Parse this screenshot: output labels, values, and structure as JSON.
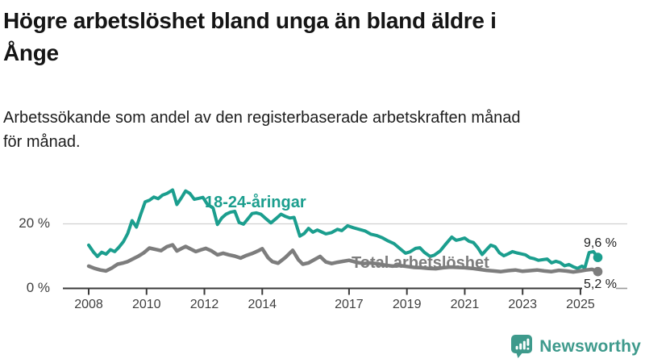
{
  "header": {
    "title_lines": [
      "Högre arbetslöshet bland unga än bland äldre i",
      "Ånge"
    ],
    "subtitle_lines": [
      "Arbetssökande som andel av den registerbaserade arbetskraften månad",
      "för månad."
    ]
  },
  "chart_data": {
    "type": "line",
    "title": "Högre arbetslöshet bland unga än bland äldre i Ånge",
    "subtitle": "Arbetssökande som andel av den registerbaserade arbetskraften månad för månad.",
    "y_unit": "%",
    "x_range": [
      2008,
      2025.75
    ],
    "y_range": [
      0,
      35
    ],
    "grid": "horizontal-only",
    "grid_color": "#d0d0d0",
    "axis_color": "#3a3a3a",
    "y_ticks": [
      {
        "value": 0,
        "label": "0 %"
      },
      {
        "value": 20,
        "label": "20 %"
      }
    ],
    "x_ticks": [
      {
        "year": 2008,
        "label": "2008"
      },
      {
        "year": 2010,
        "label": "2010"
      },
      {
        "year": 2012,
        "label": "2012"
      },
      {
        "year": 2014,
        "label": "2014"
      },
      {
        "year": 2017,
        "label": "2017"
      },
      {
        "year": 2019,
        "label": "2019"
      },
      {
        "year": 2021,
        "label": "2021"
      },
      {
        "year": 2023,
        "label": "2023"
      },
      {
        "year": 2025,
        "label": "2025"
      }
    ],
    "series": [
      {
        "name": "18-24-åringar",
        "color": "#1b9e8e",
        "stroke_width": 4,
        "end_value": 9.6,
        "end_label": "9,6 %",
        "points": [
          [
            2008.0,
            13.4
          ],
          [
            2008.17,
            11.2
          ],
          [
            2008.3,
            9.9
          ],
          [
            2008.45,
            11.2
          ],
          [
            2008.6,
            10.6
          ],
          [
            2008.75,
            12.0
          ],
          [
            2008.9,
            11.4
          ],
          [
            2009.05,
            12.8
          ],
          [
            2009.2,
            14.5
          ],
          [
            2009.35,
            17.0
          ],
          [
            2009.5,
            21.0
          ],
          [
            2009.65,
            19.0
          ],
          [
            2009.8,
            23.0
          ],
          [
            2009.95,
            26.8
          ],
          [
            2010.1,
            27.3
          ],
          [
            2010.25,
            28.3
          ],
          [
            2010.4,
            27.8
          ],
          [
            2010.55,
            28.9
          ],
          [
            2010.7,
            29.4
          ],
          [
            2010.9,
            30.5
          ],
          [
            2011.05,
            26.0
          ],
          [
            2011.2,
            28.0
          ],
          [
            2011.35,
            30.2
          ],
          [
            2011.5,
            29.4
          ],
          [
            2011.65,
            27.6
          ],
          [
            2011.8,
            27.9
          ],
          [
            2011.95,
            28.2
          ],
          [
            2012.1,
            26.1
          ],
          [
            2012.3,
            24.9
          ],
          [
            2012.45,
            19.8
          ],
          [
            2012.6,
            21.8
          ],
          [
            2012.75,
            23.0
          ],
          [
            2012.9,
            23.6
          ],
          [
            2013.05,
            23.9
          ],
          [
            2013.2,
            20.4
          ],
          [
            2013.35,
            19.9
          ],
          [
            2013.5,
            21.5
          ],
          [
            2013.65,
            23.2
          ],
          [
            2013.8,
            23.4
          ],
          [
            2013.95,
            23.0
          ],
          [
            2014.1,
            21.8
          ],
          [
            2014.3,
            20.3
          ],
          [
            2014.5,
            21.8
          ],
          [
            2014.65,
            23.0
          ],
          [
            2014.8,
            22.3
          ],
          [
            2014.95,
            21.8
          ],
          [
            2015.1,
            22.0
          ],
          [
            2015.3,
            16.2
          ],
          [
            2015.45,
            17.0
          ],
          [
            2015.6,
            18.6
          ],
          [
            2015.75,
            17.4
          ],
          [
            2015.9,
            18.1
          ],
          [
            2016.05,
            17.5
          ],
          [
            2016.2,
            16.9
          ],
          [
            2016.4,
            17.3
          ],
          [
            2016.6,
            18.3
          ],
          [
            2016.75,
            17.9
          ],
          [
            2016.95,
            19.4
          ],
          [
            2017.15,
            18.8
          ],
          [
            2017.35,
            18.3
          ],
          [
            2017.55,
            17.8
          ],
          [
            2017.75,
            16.8
          ],
          [
            2017.95,
            16.4
          ],
          [
            2018.15,
            15.7
          ],
          [
            2018.35,
            14.7
          ],
          [
            2018.55,
            13.9
          ],
          [
            2018.75,
            12.4
          ],
          [
            2018.95,
            10.9
          ],
          [
            2019.1,
            11.3
          ],
          [
            2019.3,
            12.4
          ],
          [
            2019.45,
            12.6
          ],
          [
            2019.6,
            11.2
          ],
          [
            2019.8,
            9.9
          ],
          [
            2019.95,
            10.3
          ],
          [
            2020.15,
            11.6
          ],
          [
            2020.35,
            13.8
          ],
          [
            2020.55,
            15.9
          ],
          [
            2020.7,
            14.9
          ],
          [
            2020.85,
            15.2
          ],
          [
            2021.0,
            15.6
          ],
          [
            2021.15,
            14.6
          ],
          [
            2021.3,
            14.2
          ],
          [
            2021.45,
            12.6
          ],
          [
            2021.6,
            10.5
          ],
          [
            2021.75,
            12.0
          ],
          [
            2021.9,
            13.4
          ],
          [
            2022.05,
            12.9
          ],
          [
            2022.2,
            11.0
          ],
          [
            2022.35,
            10.1
          ],
          [
            2022.5,
            10.7
          ],
          [
            2022.65,
            11.4
          ],
          [
            2022.8,
            11.0
          ],
          [
            2022.95,
            10.7
          ],
          [
            2023.1,
            10.4
          ],
          [
            2023.25,
            9.5
          ],
          [
            2023.4,
            9.2
          ],
          [
            2023.55,
            8.7
          ],
          [
            2023.7,
            8.9
          ],
          [
            2023.85,
            9.1
          ],
          [
            2024.0,
            7.9
          ],
          [
            2024.15,
            8.4
          ],
          [
            2024.3,
            8.0
          ],
          [
            2024.45,
            7.0
          ],
          [
            2024.6,
            7.4
          ],
          [
            2024.75,
            6.7
          ],
          [
            2024.9,
            6.2
          ],
          [
            2025.05,
            6.9
          ],
          [
            2025.15,
            6.3
          ],
          [
            2025.3,
            11.1
          ],
          [
            2025.45,
            11.4
          ],
          [
            2025.6,
            9.6
          ]
        ]
      },
      {
        "name": "Total arbetslöshet",
        "color": "#7d7d7d",
        "stroke_width": 4.5,
        "end_value": 5.2,
        "end_label": "5,2 %",
        "points": [
          [
            2008.0,
            6.9
          ],
          [
            2008.2,
            6.2
          ],
          [
            2008.4,
            5.7
          ],
          [
            2008.6,
            5.4
          ],
          [
            2008.8,
            6.3
          ],
          [
            2009.0,
            7.5
          ],
          [
            2009.2,
            7.9
          ],
          [
            2009.35,
            8.3
          ],
          [
            2009.5,
            9.0
          ],
          [
            2009.7,
            9.9
          ],
          [
            2009.9,
            11.0
          ],
          [
            2010.1,
            12.5
          ],
          [
            2010.3,
            12.1
          ],
          [
            2010.5,
            11.7
          ],
          [
            2010.7,
            12.9
          ],
          [
            2010.9,
            13.5
          ],
          [
            2011.05,
            11.6
          ],
          [
            2011.2,
            12.3
          ],
          [
            2011.35,
            13.0
          ],
          [
            2011.5,
            12.3
          ],
          [
            2011.7,
            11.4
          ],
          [
            2011.9,
            12.0
          ],
          [
            2012.05,
            12.4
          ],
          [
            2012.25,
            11.6
          ],
          [
            2012.45,
            10.4
          ],
          [
            2012.65,
            10.9
          ],
          [
            2012.85,
            10.4
          ],
          [
            2013.05,
            10.0
          ],
          [
            2013.25,
            9.4
          ],
          [
            2013.45,
            10.2
          ],
          [
            2013.65,
            10.8
          ],
          [
            2013.85,
            11.6
          ],
          [
            2014.0,
            12.3
          ],
          [
            2014.2,
            9.5
          ],
          [
            2014.35,
            8.3
          ],
          [
            2014.55,
            7.8
          ],
          [
            2014.8,
            9.6
          ],
          [
            2015.05,
            11.8
          ],
          [
            2015.25,
            8.9
          ],
          [
            2015.4,
            7.5
          ],
          [
            2015.6,
            7.9
          ],
          [
            2015.8,
            8.9
          ],
          [
            2016.0,
            9.9
          ],
          [
            2016.2,
            8.2
          ],
          [
            2016.4,
            7.7
          ],
          [
            2016.6,
            8.1
          ],
          [
            2016.8,
            8.4
          ],
          [
            2017.0,
            8.7
          ],
          [
            2017.25,
            8.1
          ],
          [
            2017.5,
            7.7
          ],
          [
            2017.75,
            7.9
          ],
          [
            2018.0,
            7.6
          ],
          [
            2018.25,
            7.2
          ],
          [
            2018.5,
            6.9
          ],
          [
            2018.75,
            7.1
          ],
          [
            2019.0,
            6.8
          ],
          [
            2019.25,
            6.5
          ],
          [
            2019.5,
            6.4
          ],
          [
            2019.75,
            6.2
          ],
          [
            2020.0,
            6.1
          ],
          [
            2020.25,
            6.4
          ],
          [
            2020.5,
            6.6
          ],
          [
            2020.75,
            6.5
          ],
          [
            2021.0,
            6.4
          ],
          [
            2021.25,
            6.2
          ],
          [
            2021.5,
            5.9
          ],
          [
            2021.75,
            5.6
          ],
          [
            2022.0,
            5.4
          ],
          [
            2022.25,
            5.2
          ],
          [
            2022.5,
            5.5
          ],
          [
            2022.75,
            5.7
          ],
          [
            2023.0,
            5.3
          ],
          [
            2023.25,
            5.5
          ],
          [
            2023.5,
            5.7
          ],
          [
            2023.75,
            5.4
          ],
          [
            2024.0,
            5.2
          ],
          [
            2024.25,
            5.6
          ],
          [
            2024.5,
            5.4
          ],
          [
            2024.75,
            5.1
          ],
          [
            2025.0,
            5.4
          ],
          [
            2025.2,
            5.7
          ],
          [
            2025.4,
            5.9
          ],
          [
            2025.6,
            5.2
          ]
        ]
      }
    ]
  },
  "footer": {
    "brand": "Newsworthy",
    "brand_color": "#3e9a8c"
  }
}
